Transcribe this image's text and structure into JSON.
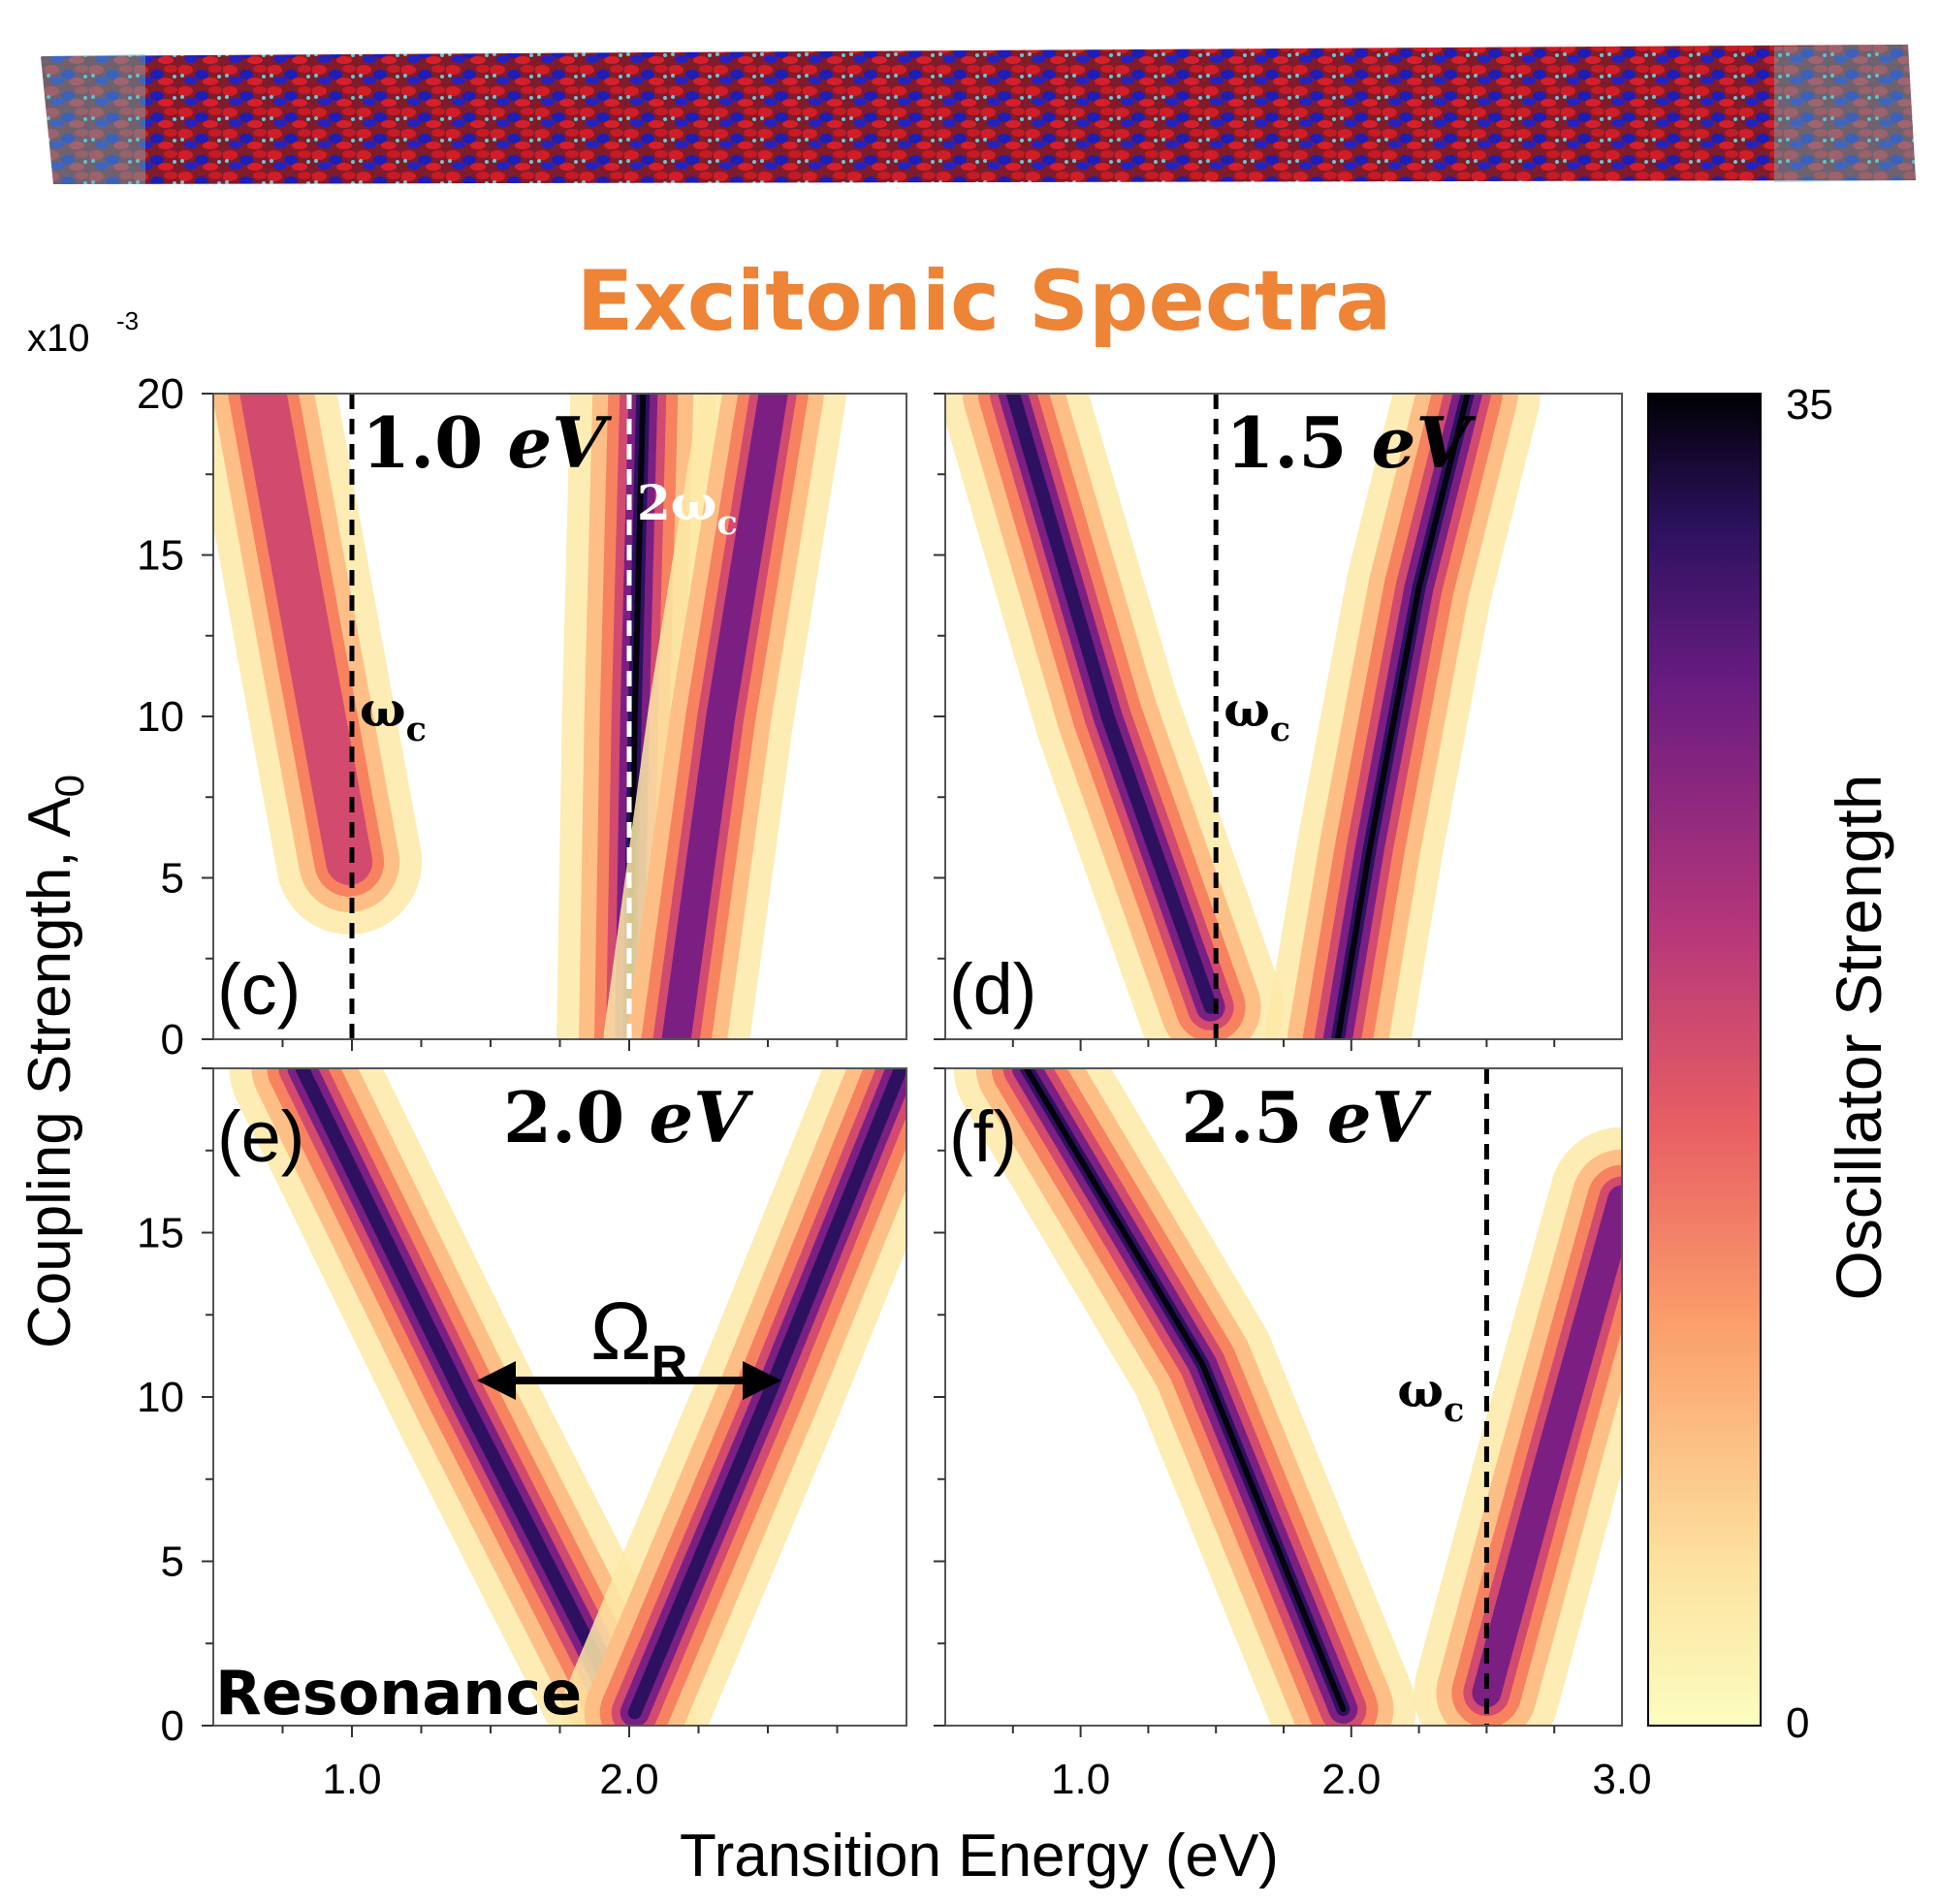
{
  "title": "Excitonic Spectra",
  "title_color": "#ee8436",
  "y_scale_label": "x10",
  "y_scale_exp": "-3",
  "ylabel_main": "Coupling Strength, A",
  "ylabel_sub": "0",
  "xlabel": "Transition Energy (eV)",
  "colorbar": {
    "label": "Oscillator Strength",
    "max_label": "35",
    "min_label": "0",
    "colormap": "magma_r"
  },
  "molecule_picture": "nanotube-orbital-isosurface",
  "labels": {
    "omega": "ω",
    "omega_sub": "c",
    "two_omega": "2ω",
    "rabi": "Ω",
    "rabi_sub": "R",
    "resonance": "Resonance"
  },
  "chart_data": [
    {
      "type": "heatmap",
      "panel": "(c)",
      "cavity_label_value": "1.0",
      "cavity_label_unit": "eV",
      "cavity_energy": 1.0,
      "xlim": [
        0.5,
        3.0
      ],
      "ylim": [
        0,
        20
      ],
      "y_multiplier": "x10^-3",
      "yticks": [
        "0",
        "5",
        "10",
        "15",
        "20"
      ],
      "xticks": [],
      "vlines": [
        {
          "x": 1.0,
          "label": "ω_c",
          "color": "black"
        },
        {
          "x": 2.0,
          "label": "2ω_c",
          "color": "white"
        }
      ],
      "bands": [
        {
          "points": [
            [
              0.68,
              20
            ],
            [
              0.85,
              12
            ],
            [
              0.99,
              5.5
            ]
          ],
          "peak": 20
        },
        {
          "points": [
            [
              2.0,
              0
            ],
            [
              2.02,
              10
            ],
            [
              2.05,
              20
            ]
          ],
          "peak": 35
        },
        {
          "points": [
            [
              2.17,
              0
            ],
            [
              2.33,
              10
            ],
            [
              2.52,
              20
            ]
          ],
          "peak": 24
        }
      ]
    },
    {
      "type": "heatmap",
      "panel": "(d)",
      "cavity_label_value": "1.5",
      "cavity_label_unit": "eV",
      "cavity_energy": 1.5,
      "xlim": [
        0.5,
        3.0
      ],
      "ylim": [
        0,
        20
      ],
      "y_multiplier": "x10^-3",
      "yticks": [],
      "xticks": [],
      "vlines": [
        {
          "x": 1.5,
          "label": "ω_c",
          "color": "black"
        }
      ],
      "bands": [
        {
          "points": [
            [
              0.75,
              20
            ],
            [
              1.1,
              10
            ],
            [
              1.48,
              1
            ]
          ],
          "peak": 28
        },
        {
          "points": [
            [
              1.95,
              0
            ],
            [
              2.07,
              6
            ],
            [
              2.25,
              14
            ],
            [
              2.43,
              20
            ]
          ],
          "peak": 35
        }
      ]
    },
    {
      "type": "heatmap",
      "panel": "(e)",
      "cavity_label_value": "2.0",
      "cavity_label_unit": "eV",
      "cavity_energy": 2.0,
      "xlim": [
        0.5,
        3.0
      ],
      "ylim": [
        0,
        20
      ],
      "y_multiplier": "x10^-3",
      "yticks": [
        "0",
        "5",
        "10",
        "15"
      ],
      "xticks": [
        "1.0",
        "2.0"
      ],
      "vlines": [],
      "annotation": {
        "text": "Ω_R",
        "x_from": 1.5,
        "x_to": 2.5,
        "y": 10.5
      },
      "bands": [
        {
          "points": [
            [
              0.82,
              20
            ],
            [
              1.4,
              10
            ],
            [
              1.98,
              0.4
            ]
          ],
          "peak": 30
        },
        {
          "points": [
            [
              2.02,
              0.4
            ],
            [
              2.5,
              10
            ],
            [
              2.98,
              20
            ]
          ],
          "peak": 30
        }
      ]
    },
    {
      "type": "heatmap",
      "panel": "(f)",
      "cavity_label_value": "2.5",
      "cavity_label_unit": "eV",
      "cavity_energy": 2.5,
      "xlim": [
        0.5,
        3.0
      ],
      "ylim": [
        0,
        20
      ],
      "y_multiplier": "x10^-3",
      "yticks": [],
      "xticks": [
        "1.0",
        "2.0",
        "3.0"
      ],
      "vlines": [
        {
          "x": 2.5,
          "label": "ω_c",
          "color": "black"
        }
      ],
      "bands": [
        {
          "points": [
            [
              0.8,
              20
            ],
            [
              1.45,
              11
            ],
            [
              1.97,
              0.5
            ]
          ],
          "peak": 35
        },
        {
          "points": [
            [
              2.5,
              1
            ],
            [
              2.73,
              8
            ],
            [
              3.0,
              16
            ]
          ],
          "peak": 25
        }
      ]
    }
  ]
}
